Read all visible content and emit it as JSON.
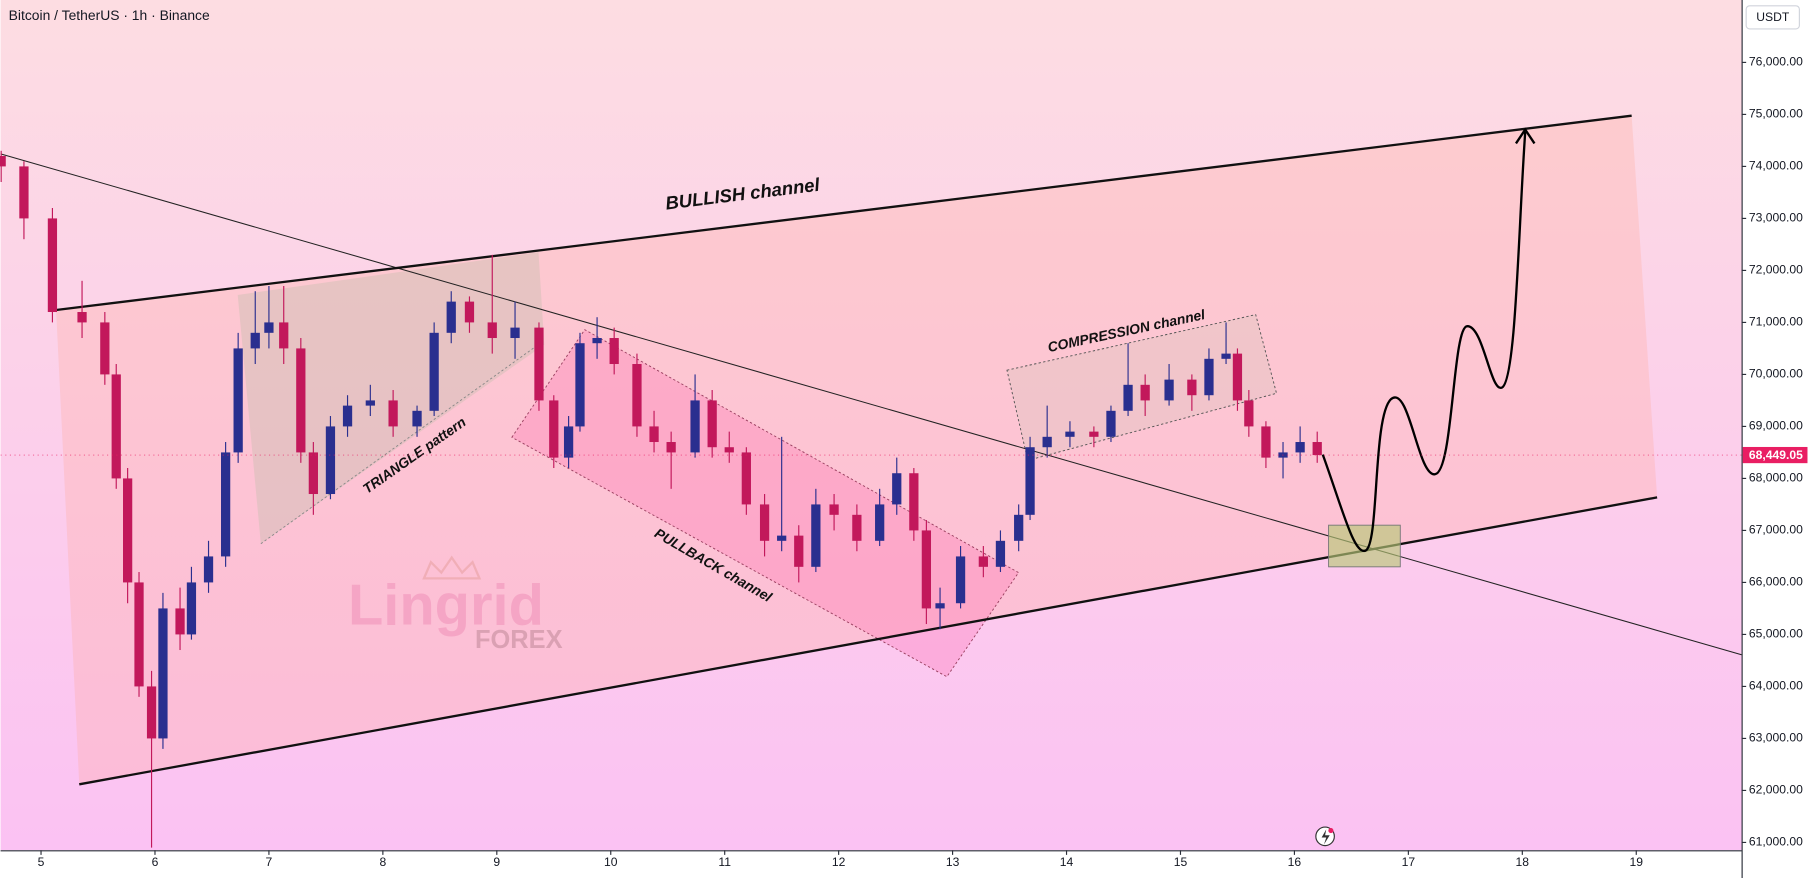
{
  "chart_data": {
    "type": "candlestick",
    "title": "Bitcoin / TetherUS · 1h · Binance",
    "currency": "USDT",
    "up_color": "#2a2f8f",
    "down_color": "#c2185b",
    "xlim": [
      4.645,
      19.924
    ],
    "ylim": [
      60850,
      77200
    ],
    "xticks": [
      5,
      6,
      7,
      8,
      9,
      10,
      11,
      12,
      13,
      14,
      15,
      16,
      17,
      18,
      19
    ],
    "yticks": [
      {
        "value": 61000,
        "label": "61,000.00"
      },
      {
        "value": 62000,
        "label": "62,000.00"
      },
      {
        "value": 63000,
        "label": "63,000.00"
      },
      {
        "value": 64000,
        "label": "64,000.00"
      },
      {
        "value": 65000,
        "label": "65,000.00"
      },
      {
        "value": 66000,
        "label": "66,000.00"
      },
      {
        "value": 67000,
        "label": "67,000.00"
      },
      {
        "value": 68000,
        "label": "68,000.00"
      },
      {
        "value": 69000,
        "label": "69,000.00"
      },
      {
        "value": 70000,
        "label": "70,000.00"
      },
      {
        "value": 71000,
        "label": "71,000.00"
      },
      {
        "value": 72000,
        "label": "72,000.00"
      },
      {
        "value": 73000,
        "label": "73,000.00"
      },
      {
        "value": 74000,
        "label": "74,000.00"
      },
      {
        "value": 75000,
        "label": "75,000.00"
      },
      {
        "value": 76000,
        "label": "76,000.00"
      }
    ],
    "last_price": {
      "value": 68449.05,
      "label": "68,449.05",
      "color": "#e91e63"
    },
    "annotations": [
      "BULLISH channel",
      "TRIANGLE pattern",
      "PULLBACK channel",
      "COMPRESSION channel"
    ],
    "watermark": [
      "Lingrid",
      "FOREX"
    ],
    "x": [
      4.65,
      4.85,
      5.1,
      5.36,
      5.56,
      5.66,
      5.76,
      5.86,
      5.97,
      6.07,
      6.22,
      6.32,
      6.47,
      6.62,
      6.73,
      6.88,
      7.0,
      7.13,
      7.28,
      7.39,
      7.54,
      7.69,
      7.89,
      8.09,
      8.3,
      8.45,
      8.6,
      8.76,
      8.96,
      9.16,
      9.37,
      9.5,
      9.63,
      9.73,
      9.88,
      10.03,
      10.23,
      10.38,
      10.53,
      10.74,
      10.89,
      11.04,
      11.19,
      11.35,
      11.5,
      11.65,
      11.8,
      11.96,
      12.16,
      12.36,
      12.51,
      12.66,
      12.77,
      12.89,
      13.07,
      13.27,
      13.42,
      13.58,
      13.68,
      13.83,
      14.03,
      14.24,
      14.39,
      14.54,
      14.69,
      14.9,
      15.1,
      15.25,
      15.4,
      15.5,
      15.6,
      15.75,
      15.9,
      16.05,
      16.2
    ],
    "open": [
      74200,
      74000,
      73000,
      71200,
      71000,
      70000,
      68000,
      66000,
      64000,
      63000,
      65500,
      65000,
      66000,
      66500,
      68500,
      70500,
      70800,
      71000,
      70500,
      68500,
      67700,
      69000,
      69400,
      69500,
      69000,
      69300,
      70800,
      71400,
      71000,
      70700,
      70900,
      69500,
      68400,
      69000,
      70600,
      70700,
      70200,
      69000,
      68700,
      68500,
      69500,
      68600,
      68500,
      67500,
      66800,
      66900,
      66300,
      67500,
      67300,
      66800,
      67500,
      68100,
      67000,
      65500,
      65600,
      66500,
      66300,
      66800,
      67300,
      68600,
      68800,
      68900,
      68800,
      69300,
      69800,
      69500,
      69900,
      69600,
      70300,
      70400,
      69500,
      69000,
      68400,
      68500,
      68700
    ],
    "high": [
      74300,
      74100,
      73200,
      71800,
      71200,
      70200,
      68200,
      66200,
      64300,
      65800,
      65900,
      66300,
      66800,
      68700,
      70800,
      71600,
      71700,
      71700,
      70700,
      68700,
      69200,
      69600,
      69800,
      69700,
      69400,
      71000,
      71600,
      71500,
      72300,
      71400,
      71000,
      69600,
      69200,
      70800,
      71100,
      70900,
      70400,
      69300,
      68900,
      70000,
      69700,
      68900,
      68600,
      67700,
      68800,
      67100,
      67800,
      67700,
      67500,
      67800,
      68400,
      68200,
      67200,
      65900,
      66700,
      66700,
      67000,
      67500,
      68800,
      69400,
      69100,
      69000,
      69400,
      70600,
      70000,
      70200,
      70000,
      70500,
      71000,
      70500,
      69700,
      69100,
      68700,
      69000,
      68900
    ],
    "low": [
      73700,
      72600,
      71000,
      70700,
      69800,
      67800,
      65600,
      63800,
      60900,
      62800,
      64700,
      64900,
      65800,
      66300,
      68300,
      70200,
      70500,
      70200,
      68300,
      67300,
      67600,
      68800,
      69200,
      68800,
      68800,
      69200,
      70600,
      70800,
      70400,
      70300,
      69300,
      68200,
      68200,
      68900,
      70300,
      70000,
      68800,
      68500,
      67800,
      68400,
      68400,
      68300,
      67300,
      66500,
      66600,
      66000,
      66200,
      67000,
      66600,
      66700,
      67300,
      66800,
      65200,
      65100,
      65500,
      66100,
      66200,
      66600,
      67200,
      68400,
      68600,
      68600,
      68700,
      69200,
      69200,
      69400,
      69300,
      69500,
      70200,
      69300,
      68800,
      68200,
      68000,
      68300,
      68300
    ],
    "close": [
      74000,
      73000,
      71200,
      71000,
      70000,
      68000,
      66000,
      64000,
      63000,
      65500,
      65000,
      66000,
      66500,
      68500,
      70500,
      70800,
      71000,
      70500,
      68500,
      67700,
      69000,
      69400,
      69500,
      69000,
      69300,
      70800,
      71400,
      71000,
      70700,
      70900,
      69500,
      68400,
      69000,
      70600,
      70700,
      70200,
      69000,
      68700,
      68500,
      69500,
      68600,
      68500,
      67500,
      66800,
      66900,
      66300,
      67500,
      67300,
      66800,
      67500,
      68100,
      67000,
      65500,
      65600,
      66500,
      66300,
      66800,
      67300,
      68600,
      68800,
      68900,
      68800,
      69300,
      69800,
      69500,
      69900,
      69600,
      70300,
      70400,
      69500,
      69000,
      68400,
      68500,
      68700,
      68449.05
    ]
  }
}
